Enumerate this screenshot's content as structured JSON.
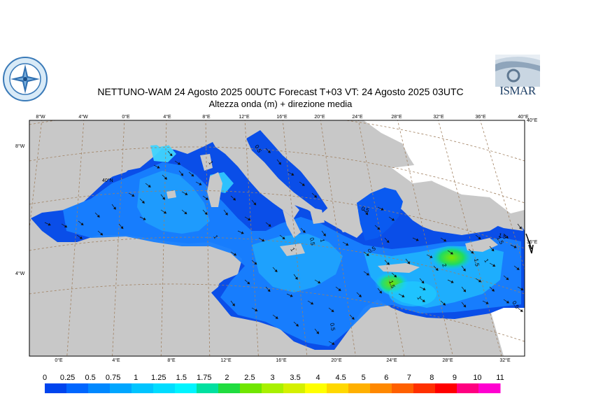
{
  "title_line1": "NETTUNO-WAM  24   Agosto  2025 00UTC Forecast T+03 VT: 24   Agosto  2025 03UTC",
  "title_line2": "Altezza onda (m) + direzione media",
  "logo_right_text": "ISMAR",
  "top_ticks": [
    "8°W",
    "4°W",
    "0°E",
    "4°E",
    "8°E",
    "12°E",
    "16°E",
    "20°E",
    "24°E",
    "28°E",
    "32°E",
    "36°E",
    "40°E"
  ],
  "bottom_ticks": [
    "0°E",
    "4°E",
    "8°E",
    "12°E",
    "16°E",
    "20°E",
    "24°E",
    "28°E",
    "32°E"
  ],
  "left_ticks": [
    "8°W",
    "4°W"
  ],
  "right_ticks": [
    "40°E",
    "36°E"
  ],
  "lat_label": "40°N",
  "contour_labels": [
    "0.5",
    "1",
    "1",
    "1",
    "0.5",
    "1",
    "0.5",
    "0.5",
    "1",
    "1.5",
    "2",
    "1.5",
    "1",
    "0.5",
    "1.5",
    "0.5",
    "1.5"
  ],
  "legend": {
    "labels": [
      "0",
      "0.25",
      "0.5",
      "0.75",
      "1",
      "1.25",
      "1.5",
      "1.75",
      "2",
      "2.5",
      "3",
      "3.5",
      "4",
      "4.5",
      "5",
      "6",
      "7",
      "8",
      "9",
      "10",
      "11"
    ],
    "colors": [
      "#0044ee",
      "#0066ff",
      "#0088ff",
      "#00a6ff",
      "#00c4ff",
      "#00dcff",
      "#00f4ff",
      "#00e0a0",
      "#20dc40",
      "#70e600",
      "#a8f000",
      "#d4f000",
      "#ffff00",
      "#ffd800",
      "#ffb000",
      "#ff8800",
      "#ff6000",
      "#ff3000",
      "#ff0000",
      "#ff0080",
      "#ff00d0"
    ]
  }
}
